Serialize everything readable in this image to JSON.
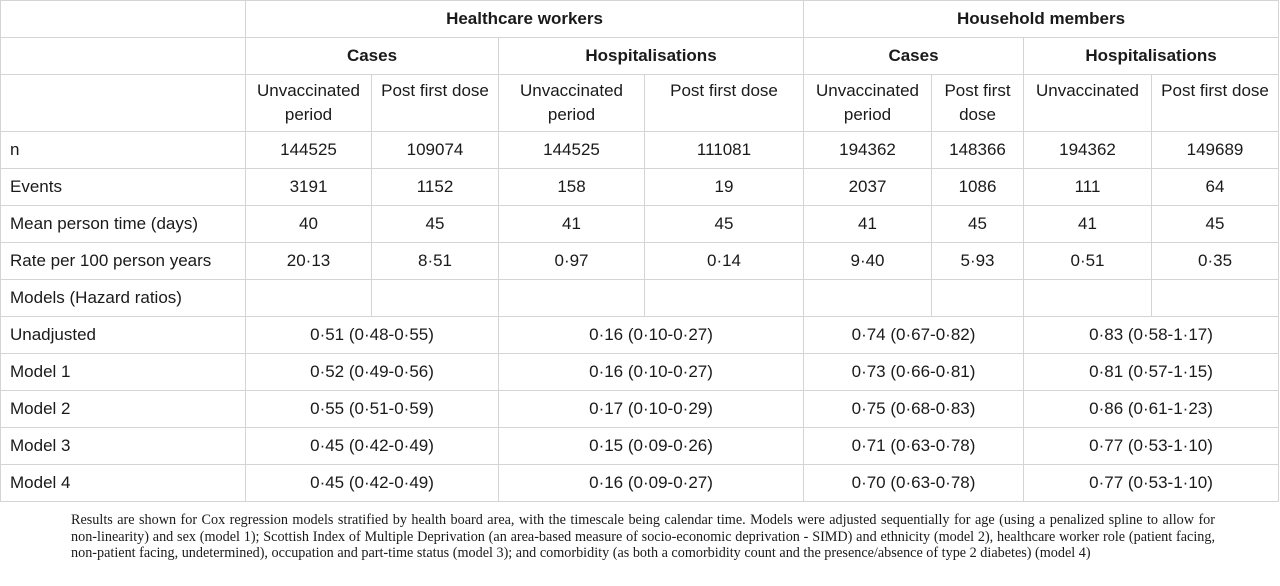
{
  "groups": [
    "Healthcare workers",
    "Household members"
  ],
  "subgroups": [
    "Cases",
    "Hospitalisations",
    "Cases",
    "Hospitalisations"
  ],
  "periods": [
    "Unvaccinated period",
    "Post first dose",
    "Unvaccinated period",
    "Post first dose",
    "Unvaccinated period",
    "Post first dose",
    "Unvaccinated",
    "Post first dose"
  ],
  "rows": [
    {
      "label": "n",
      "values": [
        "144525",
        "109074",
        "144525",
        "111081",
        "194362",
        "148366",
        "194362",
        "149689"
      ]
    },
    {
      "label": "Events",
      "values": [
        "3191",
        "1152",
        "158",
        "19",
        "2037",
        "1086",
        "111",
        "64"
      ]
    },
    {
      "label": "Mean person time (days)",
      "values": [
        "40",
        "45",
        "41",
        "45",
        "41",
        "45",
        "41",
        "45"
      ]
    },
    {
      "label": "Rate per 100 person years",
      "values": [
        "20·13",
        "8·51",
        "0·97",
        "0·14",
        "9·40",
        "5·93",
        "0·51",
        "0·35"
      ]
    }
  ],
  "models_header": "Models (Hazard ratios)",
  "models": [
    {
      "label": "Unadjusted",
      "values": [
        "0·51 (0·48-0·55)",
        "0·16 (0·10-0·27)",
        "0·74 (0·67-0·82)",
        "0·83 (0·58-1·17)"
      ]
    },
    {
      "label": "Model 1",
      "values": [
        "0·52 (0·49-0·56)",
        "0·16 (0·10-0·27)",
        "0·73 (0·66-0·81)",
        "0·81 (0·57-1·15)"
      ]
    },
    {
      "label": "Model 2",
      "values": [
        "0·55 (0·51-0·59)",
        "0·17 (0·10-0·29)",
        "0·75 (0·68-0·83)",
        "0·86 (0·61-1·23)"
      ]
    },
    {
      "label": "Model 3",
      "values": [
        "0·45 (0·42-0·49)",
        "0·15 (0·09-0·26)",
        "0·71 (0·63-0·78)",
        "0·77 (0·53-1·10)"
      ]
    },
    {
      "label": "Model 4",
      "values": [
        "0·45 (0·42-0·49)",
        "0·16 (0·09-0·27)",
        "0·70 (0·63-0·78)",
        "0·77 (0·53-1·10)"
      ]
    }
  ],
  "footnote": "Results are shown for Cox regression models stratified by health board area, with the timescale being calendar time. Models were adjusted sequentially for age (using a penalized spline to allow for non-linearity) and sex (model 1); Scottish Index of Multiple Deprivation (an area-based measure of socio-economic deprivation - SIMD) and ethnicity (model 2), healthcare worker role (patient facing, non-patient facing, undetermined), occupation and part-time status (model 3); and comorbidity (as both a comorbidity count and the presence/absence of type 2 diabetes) (model 4)"
}
